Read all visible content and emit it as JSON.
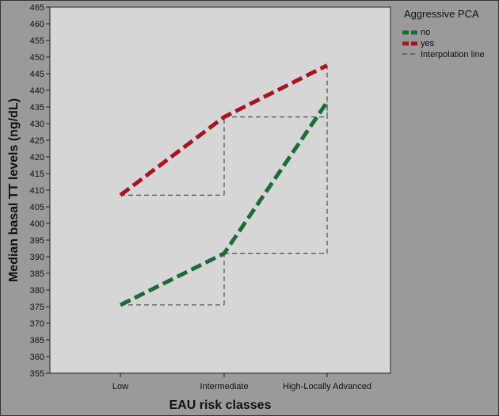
{
  "chart_data": {
    "type": "line",
    "xlabel": "EAU risk classes",
    "ylabel": "Median basal TT levels (ng/dL)",
    "categories": [
      "Low",
      "Intermediate",
      "High-Locally Advanced"
    ],
    "ylim": [
      355,
      465
    ],
    "yticks": [
      355,
      360,
      365,
      370,
      375,
      380,
      385,
      390,
      395,
      400,
      405,
      410,
      415,
      420,
      425,
      430,
      435,
      440,
      445,
      450,
      455,
      460,
      465
    ],
    "legend": {
      "title": "Aggressive PCA",
      "placement": "top-right",
      "entries": [
        {
          "label": "no",
          "color": "#1d6b35"
        },
        {
          "label": "yes",
          "color": "#a8151d"
        },
        {
          "label": "Interpolation line",
          "color": "#333333"
        }
      ]
    },
    "series": [
      {
        "name": "no",
        "color": "#1d6b35",
        "values": [
          375.5,
          391,
          436.5
        ]
      },
      {
        "name": "yes",
        "color": "#a8151d",
        "values": [
          408.5,
          432,
          447.5
        ]
      }
    ],
    "grid": false
  }
}
